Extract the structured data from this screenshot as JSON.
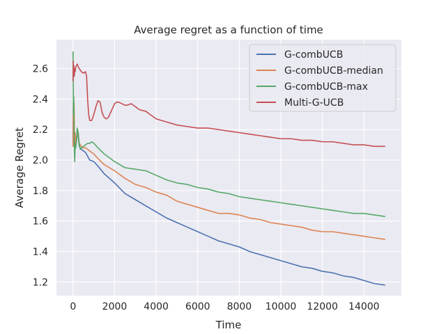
{
  "chart_data": {
    "type": "line",
    "title": "Average regret as a function of time",
    "xlabel": "Time",
    "ylabel": "Average Regret",
    "xlim": [
      -800,
      15800
    ],
    "ylim": [
      1.11,
      2.79
    ],
    "x_ticks": [
      0,
      2000,
      4000,
      6000,
      8000,
      10000,
      12000,
      14000
    ],
    "x_tick_labels": [
      "0",
      "2000",
      "4000",
      "6000",
      "8000",
      "10000",
      "12000",
      "14000"
    ],
    "y_ticks": [
      1.2,
      1.4,
      1.6,
      1.8,
      2.0,
      2.2,
      2.4,
      2.6
    ],
    "y_tick_labels": [
      "1.2",
      "1.4",
      "1.6",
      "1.8",
      "2.0",
      "2.2",
      "2.4",
      "2.6"
    ],
    "grid": true,
    "legend_position": "top-right",
    "series": [
      {
        "name": "G-combUCB",
        "color": "#4c72b0",
        "points": [
          [
            0,
            2.1
          ],
          [
            15,
            2.38
          ],
          [
            30,
            2.15
          ],
          [
            50,
            2.3
          ],
          [
            70,
            2.09
          ],
          [
            100,
            2.15
          ],
          [
            130,
            2.1
          ],
          [
            160,
            2.12
          ],
          [
            200,
            2.18
          ],
          [
            250,
            2.15
          ],
          [
            300,
            2.09
          ],
          [
            400,
            2.07
          ],
          [
            500,
            2.06
          ],
          [
            600,
            2.05
          ],
          [
            800,
            2.0
          ],
          [
            1000,
            1.99
          ],
          [
            1200,
            1.96
          ],
          [
            1500,
            1.91
          ],
          [
            2000,
            1.85
          ],
          [
            2500,
            1.78
          ],
          [
            3000,
            1.74
          ],
          [
            3500,
            1.7
          ],
          [
            4000,
            1.66
          ],
          [
            4500,
            1.62
          ],
          [
            5000,
            1.59
          ],
          [
            5500,
            1.56
          ],
          [
            6000,
            1.53
          ],
          [
            6500,
            1.5
          ],
          [
            7000,
            1.47
          ],
          [
            7500,
            1.45
          ],
          [
            8000,
            1.43
          ],
          [
            8500,
            1.4
          ],
          [
            9000,
            1.38
          ],
          [
            9500,
            1.36
          ],
          [
            10000,
            1.34
          ],
          [
            10500,
            1.32
          ],
          [
            11000,
            1.3
          ],
          [
            11500,
            1.29
          ],
          [
            12000,
            1.27
          ],
          [
            12500,
            1.26
          ],
          [
            13000,
            1.24
          ],
          [
            13500,
            1.23
          ],
          [
            14000,
            1.21
          ],
          [
            14500,
            1.19
          ],
          [
            15000,
            1.18
          ]
        ]
      },
      {
        "name": "G-combUCB-median",
        "color": "#dd8452",
        "points": [
          [
            0,
            2.09
          ],
          [
            15,
            2.4
          ],
          [
            30,
            2.2
          ],
          [
            50,
            2.38
          ],
          [
            70,
            2.12
          ],
          [
            100,
            2.18
          ],
          [
            130,
            2.1
          ],
          [
            160,
            2.12
          ],
          [
            200,
            2.19
          ],
          [
            250,
            2.16
          ],
          [
            300,
            2.11
          ],
          [
            400,
            2.09
          ],
          [
            500,
            2.08
          ],
          [
            600,
            2.08
          ],
          [
            800,
            2.06
          ],
          [
            1000,
            2.04
          ],
          [
            1200,
            2.01
          ],
          [
            1500,
            1.97
          ],
          [
            2000,
            1.93
          ],
          [
            2500,
            1.88
          ],
          [
            3000,
            1.84
          ],
          [
            3500,
            1.82
          ],
          [
            4000,
            1.79
          ],
          [
            4500,
            1.77
          ],
          [
            5000,
            1.73
          ],
          [
            5500,
            1.71
          ],
          [
            6000,
            1.69
          ],
          [
            6500,
            1.67
          ],
          [
            7000,
            1.65
          ],
          [
            7500,
            1.65
          ],
          [
            8000,
            1.64
          ],
          [
            8500,
            1.62
          ],
          [
            9000,
            1.61
          ],
          [
            9500,
            1.59
          ],
          [
            10000,
            1.58
          ],
          [
            10500,
            1.57
          ],
          [
            11000,
            1.56
          ],
          [
            11500,
            1.54
          ],
          [
            12000,
            1.53
          ],
          [
            12500,
            1.53
          ],
          [
            13000,
            1.52
          ],
          [
            13500,
            1.51
          ],
          [
            14000,
            1.5
          ],
          [
            14500,
            1.49
          ],
          [
            15000,
            1.48
          ]
        ]
      },
      {
        "name": "G-combUCB-max",
        "color": "#55a868",
        "points": [
          [
            0,
            2.71
          ],
          [
            10,
            2.55
          ],
          [
            20,
            2.3
          ],
          [
            30,
            2.42
          ],
          [
            40,
            2.35
          ],
          [
            50,
            2.2
          ],
          [
            60,
            2.05
          ],
          [
            80,
            1.99
          ],
          [
            100,
            2.1
          ],
          [
            130,
            2.08
          ],
          [
            160,
            2.12
          ],
          [
            200,
            2.21
          ],
          [
            250,
            2.18
          ],
          [
            300,
            2.1
          ],
          [
            350,
            2.07
          ],
          [
            400,
            2.08
          ],
          [
            500,
            2.09
          ],
          [
            600,
            2.1
          ],
          [
            700,
            2.11
          ],
          [
            800,
            2.11
          ],
          [
            900,
            2.12
          ],
          [
            1000,
            2.11
          ],
          [
            1200,
            2.08
          ],
          [
            1500,
            2.04
          ],
          [
            2000,
            1.99
          ],
          [
            2500,
            1.95
          ],
          [
            3000,
            1.94
          ],
          [
            3500,
            1.93
          ],
          [
            4000,
            1.9
          ],
          [
            4500,
            1.87
          ],
          [
            5000,
            1.85
          ],
          [
            5500,
            1.84
          ],
          [
            6000,
            1.82
          ],
          [
            6500,
            1.81
          ],
          [
            7000,
            1.79
          ],
          [
            7500,
            1.78
          ],
          [
            8000,
            1.76
          ],
          [
            8500,
            1.75
          ],
          [
            9000,
            1.74
          ],
          [
            9500,
            1.73
          ],
          [
            10000,
            1.72
          ],
          [
            10500,
            1.71
          ],
          [
            11000,
            1.7
          ],
          [
            11500,
            1.69
          ],
          [
            12000,
            1.68
          ],
          [
            12500,
            1.67
          ],
          [
            13000,
            1.66
          ],
          [
            13500,
            1.65
          ],
          [
            14000,
            1.65
          ],
          [
            14500,
            1.64
          ],
          [
            15000,
            1.63
          ]
        ]
      },
      {
        "name": "Multi-G-UCB",
        "color": "#c44e52",
        "points": [
          [
            0,
            2.52
          ],
          [
            10,
            2.65
          ],
          [
            20,
            2.55
          ],
          [
            40,
            2.62
          ],
          [
            60,
            2.55
          ],
          [
            80,
            2.6
          ],
          [
            100,
            2.58
          ],
          [
            130,
            2.61
          ],
          [
            160,
            2.62
          ],
          [
            200,
            2.63
          ],
          [
            250,
            2.61
          ],
          [
            300,
            2.6
          ],
          [
            400,
            2.58
          ],
          [
            500,
            2.57
          ],
          [
            600,
            2.58
          ],
          [
            650,
            2.55
          ],
          [
            700,
            2.4
          ],
          [
            750,
            2.3
          ],
          [
            800,
            2.26
          ],
          [
            900,
            2.26
          ],
          [
            1000,
            2.3
          ],
          [
            1100,
            2.35
          ],
          [
            1200,
            2.39
          ],
          [
            1300,
            2.38
          ],
          [
            1400,
            2.31
          ],
          [
            1500,
            2.28
          ],
          [
            1600,
            2.27
          ],
          [
            1700,
            2.28
          ],
          [
            1800,
            2.31
          ],
          [
            1900,
            2.34
          ],
          [
            2000,
            2.37
          ],
          [
            2100,
            2.38
          ],
          [
            2200,
            2.38
          ],
          [
            2500,
            2.36
          ],
          [
            2600,
            2.36
          ],
          [
            2800,
            2.37
          ],
          [
            3000,
            2.35
          ],
          [
            3200,
            2.33
          ],
          [
            3500,
            2.32
          ],
          [
            3800,
            2.29
          ],
          [
            4000,
            2.27
          ],
          [
            4500,
            2.25
          ],
          [
            5000,
            2.23
          ],
          [
            5500,
            2.22
          ],
          [
            6000,
            2.21
          ],
          [
            6500,
            2.21
          ],
          [
            7000,
            2.2
          ],
          [
            7500,
            2.19
          ],
          [
            8000,
            2.18
          ],
          [
            8500,
            2.17
          ],
          [
            9000,
            2.16
          ],
          [
            9500,
            2.15
          ],
          [
            10000,
            2.14
          ],
          [
            10500,
            2.14
          ],
          [
            11000,
            2.13
          ],
          [
            11500,
            2.13
          ],
          [
            12000,
            2.12
          ],
          [
            12500,
            2.12
          ],
          [
            13000,
            2.11
          ],
          [
            13500,
            2.1
          ],
          [
            14000,
            2.1
          ],
          [
            14500,
            2.09
          ],
          [
            15000,
            2.09
          ]
        ]
      }
    ]
  }
}
